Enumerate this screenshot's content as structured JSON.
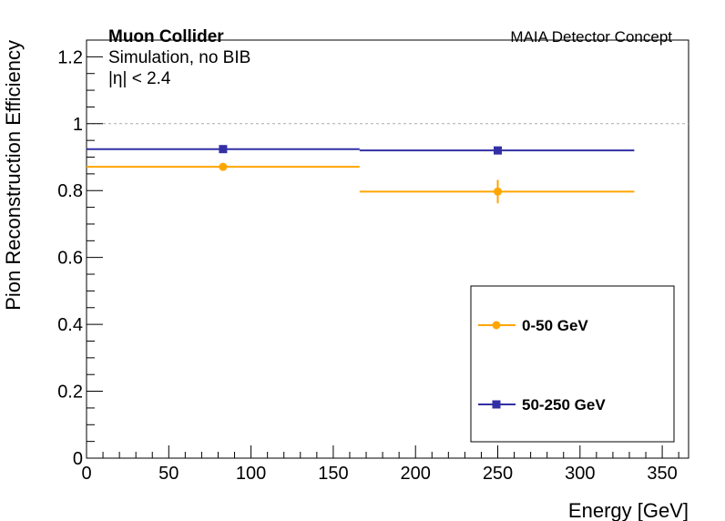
{
  "chart_data": {
    "type": "scatter",
    "xlabel": "Energy [GeV]",
    "ylabel": "Pion Reconstruction Efficiency",
    "xlim": [
      0,
      366
    ],
    "ylim": [
      0,
      1.25
    ],
    "x_ticks": [
      0,
      50,
      100,
      150,
      200,
      250,
      300,
      350
    ],
    "y_ticks": [
      0,
      0.2,
      0.4,
      0.6,
      0.8,
      1,
      1.2
    ],
    "x_tick_labels": [
      "0",
      "50",
      "100",
      "150",
      "200",
      "250",
      "300",
      "350"
    ],
    "y_tick_labels": [
      "0",
      "0.2",
      "0.4",
      "0.6",
      "0.8",
      "1",
      "1.2"
    ],
    "reference_line": {
      "y": 1.0,
      "style": "dashed",
      "color": "#aaaaaa"
    },
    "annotations": {
      "experiment": "Muon Collider",
      "simulation": "Simulation, no BIB",
      "eta_cut": "|η| < 2.4",
      "detector": "MAIA Detector Concept"
    },
    "legend": {
      "placement": "bottom-right"
    },
    "series": [
      {
        "name": "0-50 GeV",
        "color": "#ffa500",
        "marker": "circle",
        "points": [
          {
            "x": 83,
            "x_low": 0,
            "x_high": 166,
            "y": 0.871,
            "y_err": 0.006
          },
          {
            "x": 250,
            "x_low": 166,
            "x_high": 333,
            "y": 0.797,
            "y_err": 0.035
          }
        ]
      },
      {
        "name": "50-250 GeV",
        "color": "#3330a6",
        "marker": "square",
        "points": [
          {
            "x": 83,
            "x_low": 0,
            "x_high": 166,
            "y": 0.924,
            "y_err": 0.004
          },
          {
            "x": 250,
            "x_low": 166,
            "x_high": 333,
            "y": 0.92,
            "y_err": 0.006
          }
        ]
      }
    ]
  }
}
